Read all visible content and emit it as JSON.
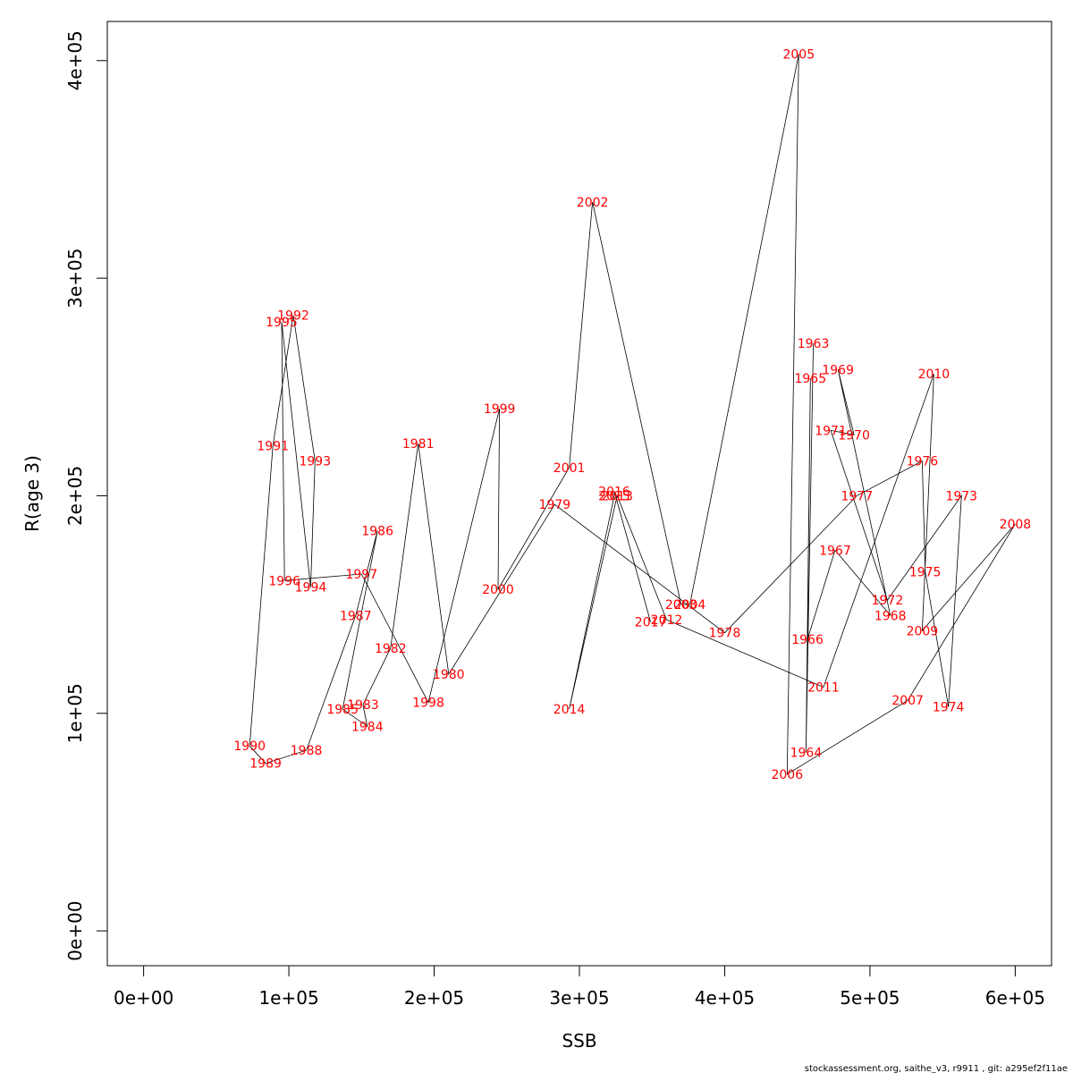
{
  "chart_data": {
    "type": "line",
    "xlabel": "SSB",
    "ylabel": "R(age 3)",
    "xlim": [
      -25000,
      625000
    ],
    "ylim": [
      -16000,
      418000
    ],
    "x_ticks": [
      0,
      100000,
      200000,
      300000,
      400000,
      500000,
      600000
    ],
    "x_tick_labels": [
      "0e+00",
      "1e+05",
      "2e+05",
      "3e+05",
      "4e+05",
      "5e+05",
      "6e+05"
    ],
    "y_ticks": [
      0,
      100000,
      200000,
      300000,
      400000
    ],
    "y_tick_labels": [
      "0e+00",
      "1e+05",
      "2e+05",
      "3e+05",
      "4e+05"
    ],
    "label_color": "#ff0000",
    "line_color": "#000000",
    "grid": false,
    "points": [
      {
        "year": "1963",
        "x": 461000,
        "y": 270000
      },
      {
        "year": "1964",
        "x": 456000,
        "y": 82000
      },
      {
        "year": "1965",
        "x": 459000,
        "y": 254000
      },
      {
        "year": "1966",
        "x": 457000,
        "y": 134000
      },
      {
        "year": "1967",
        "x": 476000,
        "y": 175000
      },
      {
        "year": "1968",
        "x": 514000,
        "y": 145000
      },
      {
        "year": "1969",
        "x": 478000,
        "y": 258000
      },
      {
        "year": "1970",
        "x": 489000,
        "y": 228000
      },
      {
        "year": "1971",
        "x": 473000,
        "y": 230000
      },
      {
        "year": "1972",
        "x": 512000,
        "y": 152000
      },
      {
        "year": "1973",
        "x": 563000,
        "y": 200000
      },
      {
        "year": "1974",
        "x": 554000,
        "y": 103000
      },
      {
        "year": "1975",
        "x": 538000,
        "y": 165000
      },
      {
        "year": "1976",
        "x": 536000,
        "y": 216000
      },
      {
        "year": "1977",
        "x": 491000,
        "y": 200000
      },
      {
        "year": "1978",
        "x": 400000,
        "y": 137000
      },
      {
        "year": "1979",
        "x": 283000,
        "y": 196000
      },
      {
        "year": "1980",
        "x": 210000,
        "y": 118000
      },
      {
        "year": "1981",
        "x": 189000,
        "y": 224000
      },
      {
        "year": "1982",
        "x": 170000,
        "y": 130000
      },
      {
        "year": "1983",
        "x": 151000,
        "y": 104000
      },
      {
        "year": "1984",
        "x": 154000,
        "y": 94000
      },
      {
        "year": "1985",
        "x": 137000,
        "y": 102000
      },
      {
        "year": "1986",
        "x": 161000,
        "y": 184000
      },
      {
        "year": "1987",
        "x": 146000,
        "y": 145000
      },
      {
        "year": "1988",
        "x": 112000,
        "y": 83000
      },
      {
        "year": "1989",
        "x": 84000,
        "y": 77000
      },
      {
        "year": "1990",
        "x": 73000,
        "y": 85000
      },
      {
        "year": "1991",
        "x": 89000,
        "y": 223000
      },
      {
        "year": "1992",
        "x": 103000,
        "y": 283000
      },
      {
        "year": "1993",
        "x": 118000,
        "y": 216000
      },
      {
        "year": "1994",
        "x": 115000,
        "y": 158000
      },
      {
        "year": "1995",
        "x": 95000,
        "y": 280000
      },
      {
        "year": "1996",
        "x": 97000,
        "y": 161000
      },
      {
        "year": "1997",
        "x": 150000,
        "y": 164000
      },
      {
        "year": "1998",
        "x": 196000,
        "y": 105000
      },
      {
        "year": "1999",
        "x": 245000,
        "y": 240000
      },
      {
        "year": "2000",
        "x": 244000,
        "y": 157000
      },
      {
        "year": "2001",
        "x": 293000,
        "y": 213000
      },
      {
        "year": "2002",
        "x": 309000,
        "y": 335000
      },
      {
        "year": "2003",
        "x": 370000,
        "y": 150000
      },
      {
        "year": "2004",
        "x": 376000,
        "y": 150000
      },
      {
        "year": "2005",
        "x": 451000,
        "y": 403000
      },
      {
        "year": "2006",
        "x": 443000,
        "y": 72000
      },
      {
        "year": "2007",
        "x": 526000,
        "y": 106000
      },
      {
        "year": "2008",
        "x": 600000,
        "y": 187000
      },
      {
        "year": "2009",
        "x": 536000,
        "y": 138000
      },
      {
        "year": "2010",
        "x": 544000,
        "y": 256000
      },
      {
        "year": "2011",
        "x": 468000,
        "y": 112000
      },
      {
        "year": "2012",
        "x": 360000,
        "y": 143000
      },
      {
        "year": "2013",
        "x": 326000,
        "y": 200000
      },
      {
        "year": "2014",
        "x": 293000,
        "y": 102000
      },
      {
        "year": "2015",
        "x": 324000,
        "y": 200000
      },
      {
        "year": "2016",
        "x": 324000,
        "y": 202000
      },
      {
        "year": "2017",
        "x": 349000,
        "y": 142000
      }
    ]
  },
  "footer": "stockassessment.org, saithe_v3, r9911 , git: a295ef2f11ae"
}
